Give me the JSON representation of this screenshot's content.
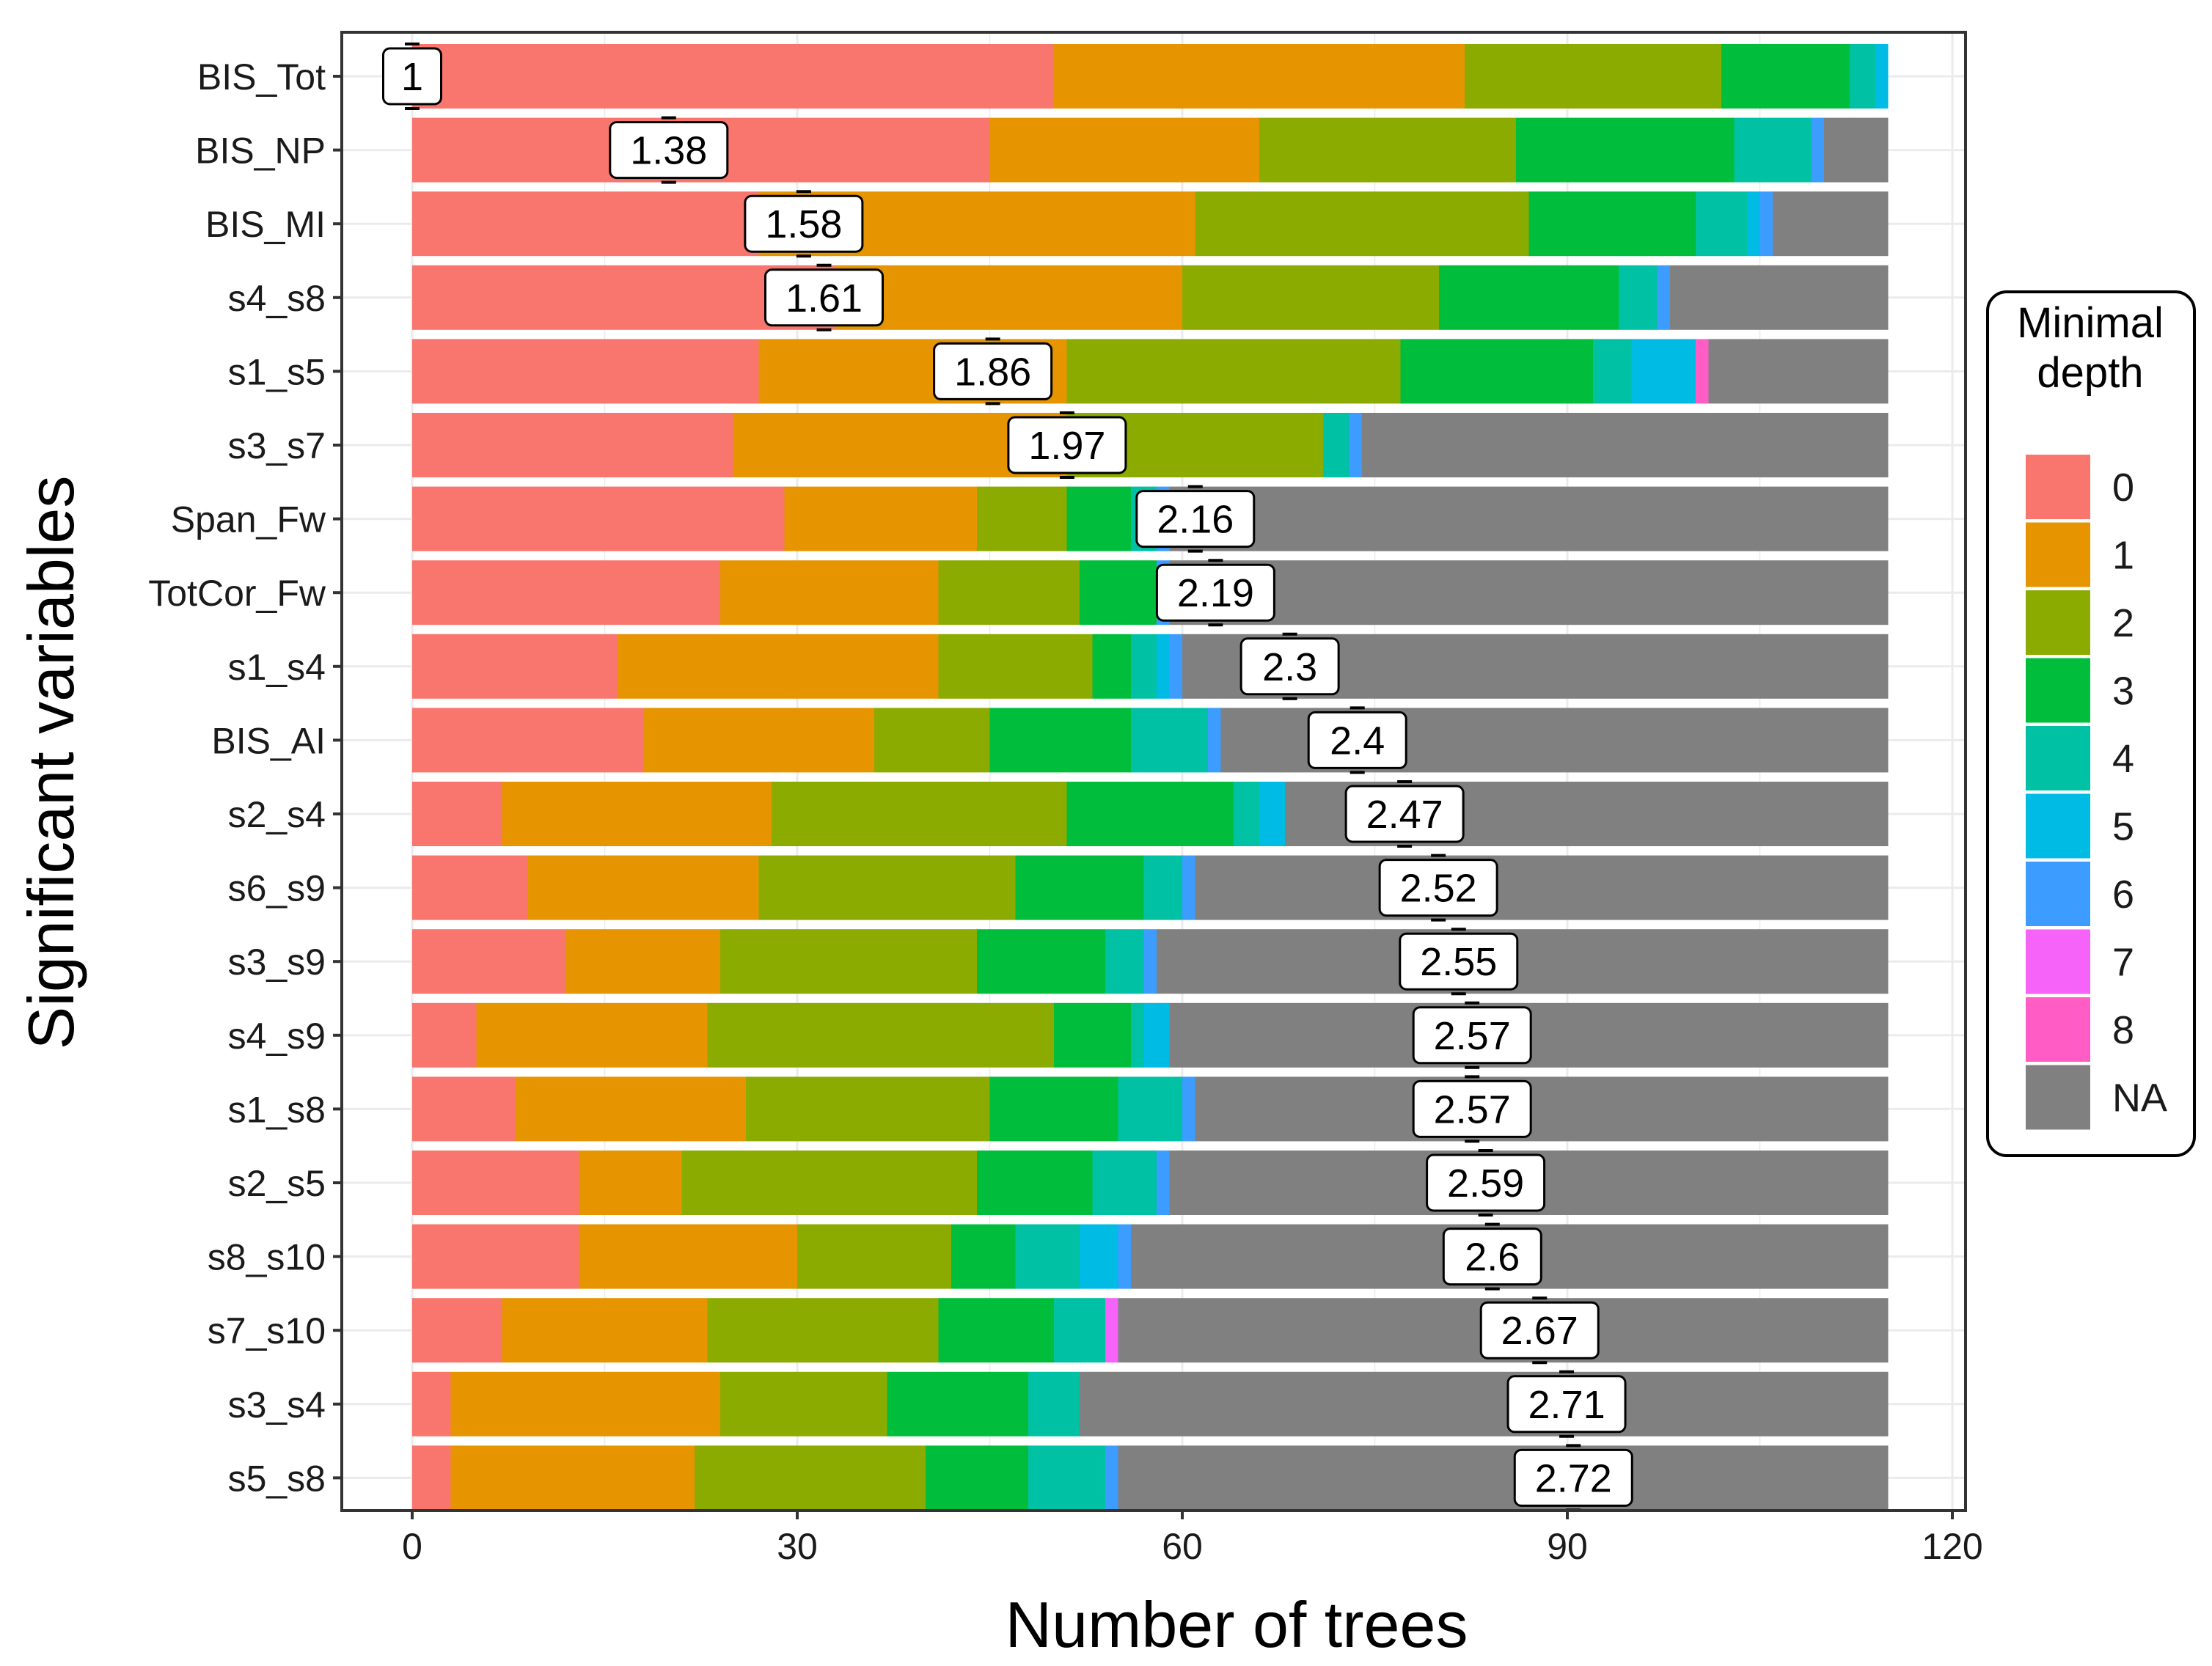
{
  "chart_data": {
    "type": "bar",
    "orientation": "horizontal",
    "stacked": true,
    "xlabel": "Number of trees",
    "ylabel": "Significant variables",
    "xlim": [
      0,
      120
    ],
    "xticks": [
      "0",
      "30",
      "60",
      "90",
      "120"
    ],
    "grid": true,
    "legend": {
      "title": "Minimal depth",
      "position": "right",
      "entries": [
        {
          "label": "0",
          "color": "#F8766D"
        },
        {
          "label": "1",
          "color": "#E69500"
        },
        {
          "label": "2",
          "color": "#8CAB00"
        },
        {
          "label": "3",
          "color": "#00BE3C"
        },
        {
          "label": "4",
          "color": "#00C1A3"
        },
        {
          "label": "5",
          "color": "#00BCE4"
        },
        {
          "label": "6",
          "color": "#3C9CFF"
        },
        {
          "label": "7",
          "color": "#F563F8"
        },
        {
          "label": "8",
          "color": "#FF5CC6"
        },
        {
          "label": "NA",
          "color": "#808080"
        }
      ]
    },
    "categories": [
      "BIS_Tot",
      "BIS_NP",
      "BIS_MI",
      "s4_s8",
      "s1_s5",
      "s3_s7",
      "Span_Fw",
      "TotCor_Fw",
      "s1_s4",
      "BIS_AI",
      "s2_s4",
      "s6_s9",
      "s3_s9",
      "s4_s9",
      "s1_s8",
      "s2_s5",
      "s8_s10",
      "s7_s10",
      "s3_s4",
      "s5_s8"
    ],
    "mean_min_depth": [
      "1",
      "1.38",
      "1.58",
      "1.61",
      "1.86",
      "1.97",
      "2.16",
      "2.19",
      "2.3",
      "2.4",
      "2.47",
      "2.52",
      "2.55",
      "2.57",
      "2.57",
      "2.59",
      "2.6",
      "2.67",
      "2.71",
      "2.72"
    ],
    "series": [
      {
        "name": "0",
        "values": [
          50,
          45,
          27,
          33,
          27,
          25,
          29,
          24,
          16,
          18,
          7,
          9,
          12,
          5,
          8,
          13,
          13,
          7,
          3,
          3
        ]
      },
      {
        "name": "1",
        "values": [
          32,
          21,
          34,
          27,
          24,
          26,
          15,
          17,
          25,
          18,
          21,
          18,
          12,
          18,
          18,
          8,
          17,
          16,
          21,
          19
        ]
      },
      {
        "name": "2",
        "values": [
          20,
          20,
          26,
          20,
          26,
          20,
          7,
          11,
          12,
          9,
          23,
          20,
          20,
          27,
          19,
          23,
          12,
          18,
          13,
          18
        ]
      },
      {
        "name": "3",
        "values": [
          10,
          17,
          13,
          14,
          15,
          0,
          5,
          6,
          3,
          11,
          13,
          10,
          10,
          6,
          10,
          9,
          5,
          9,
          11,
          8
        ]
      },
      {
        "name": "4",
        "values": [
          2,
          6,
          4,
          3,
          3,
          2,
          2,
          0,
          2,
          6,
          2,
          3,
          3,
          1,
          5,
          5,
          5,
          4,
          4,
          6
        ]
      },
      {
        "name": "5",
        "values": [
          1,
          0,
          1,
          0,
          5,
          0,
          0,
          0,
          1,
          0,
          2,
          0,
          0,
          2,
          0,
          0,
          3,
          0,
          0,
          0
        ]
      },
      {
        "name": "6",
        "values": [
          0,
          1,
          1,
          1,
          0,
          1,
          1,
          1,
          1,
          1,
          0,
          1,
          1,
          0,
          1,
          1,
          1,
          0,
          0,
          1
        ]
      },
      {
        "name": "7",
        "values": [
          0,
          0,
          0,
          0,
          0,
          0,
          0,
          0,
          0,
          0,
          0,
          0,
          0,
          0,
          0,
          0,
          0,
          1,
          0,
          0
        ]
      },
      {
        "name": "8",
        "values": [
          0,
          0,
          0,
          0,
          1,
          0,
          0,
          0,
          0,
          0,
          0,
          0,
          0,
          0,
          0,
          0,
          0,
          0,
          0,
          0
        ]
      },
      {
        "name": "NA",
        "values": [
          0,
          5,
          9,
          17,
          14,
          41,
          56,
          56,
          55,
          52,
          47,
          54,
          57,
          56,
          54,
          56,
          59,
          60,
          63,
          60
        ]
      }
    ]
  }
}
